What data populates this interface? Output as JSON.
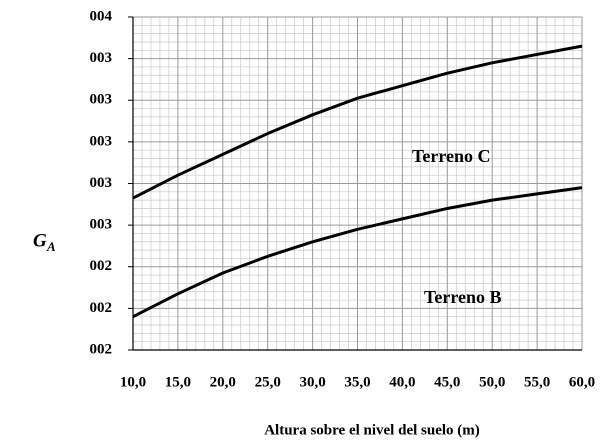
{
  "chart_data": {
    "type": "line",
    "ylabel": "G",
    "ylabel_sub": "A",
    "xlabel": "Altura sobre el nivel del suelo  (m)",
    "x": [
      10,
      15,
      20,
      25,
      30,
      35,
      40,
      45,
      50,
      55,
      60
    ],
    "series": [
      {
        "name": "Terreno C",
        "color": "#000000",
        "values": [
          2.73,
          2.84,
          2.94,
          3.04,
          3.13,
          3.21,
          3.27,
          3.33,
          3.38,
          3.42,
          3.46
        ]
      },
      {
        "name": "Terreno B",
        "color": "#000000",
        "values": [
          2.16,
          2.27,
          2.37,
          2.45,
          2.52,
          2.58,
          2.63,
          2.68,
          2.72,
          2.75,
          2.78
        ]
      }
    ],
    "xlim": [
      10,
      60
    ],
    "xticks": [
      {
        "value": 10,
        "label": "10,0"
      },
      {
        "value": 15,
        "label": "15,0"
      },
      {
        "value": 20,
        "label": "20,0"
      },
      {
        "value": 25,
        "label": "25,0"
      },
      {
        "value": 30,
        "label": "30,0"
      },
      {
        "value": 35,
        "label": "35,0"
      },
      {
        "value": 40,
        "label": "40,0"
      },
      {
        "value": 45,
        "label": "45,0"
      },
      {
        "value": 50,
        "label": "50,0"
      },
      {
        "value": 55,
        "label": "55,0"
      },
      {
        "value": 60,
        "label": "60,0"
      }
    ],
    "ylim": [
      2.0,
      3.6
    ],
    "yticks": [
      {
        "value": 2.0,
        "label": "002"
      },
      {
        "value": 2.2,
        "label": "002"
      },
      {
        "value": 2.4,
        "label": "002"
      },
      {
        "value": 2.6,
        "label": "003"
      },
      {
        "value": 2.8,
        "label": "003"
      },
      {
        "value": 3.0,
        "label": "003"
      },
      {
        "value": 3.2,
        "label": "003"
      },
      {
        "value": 3.4,
        "label": "003"
      },
      {
        "value": 3.6,
        "label": "004"
      }
    ],
    "grid": true
  }
}
